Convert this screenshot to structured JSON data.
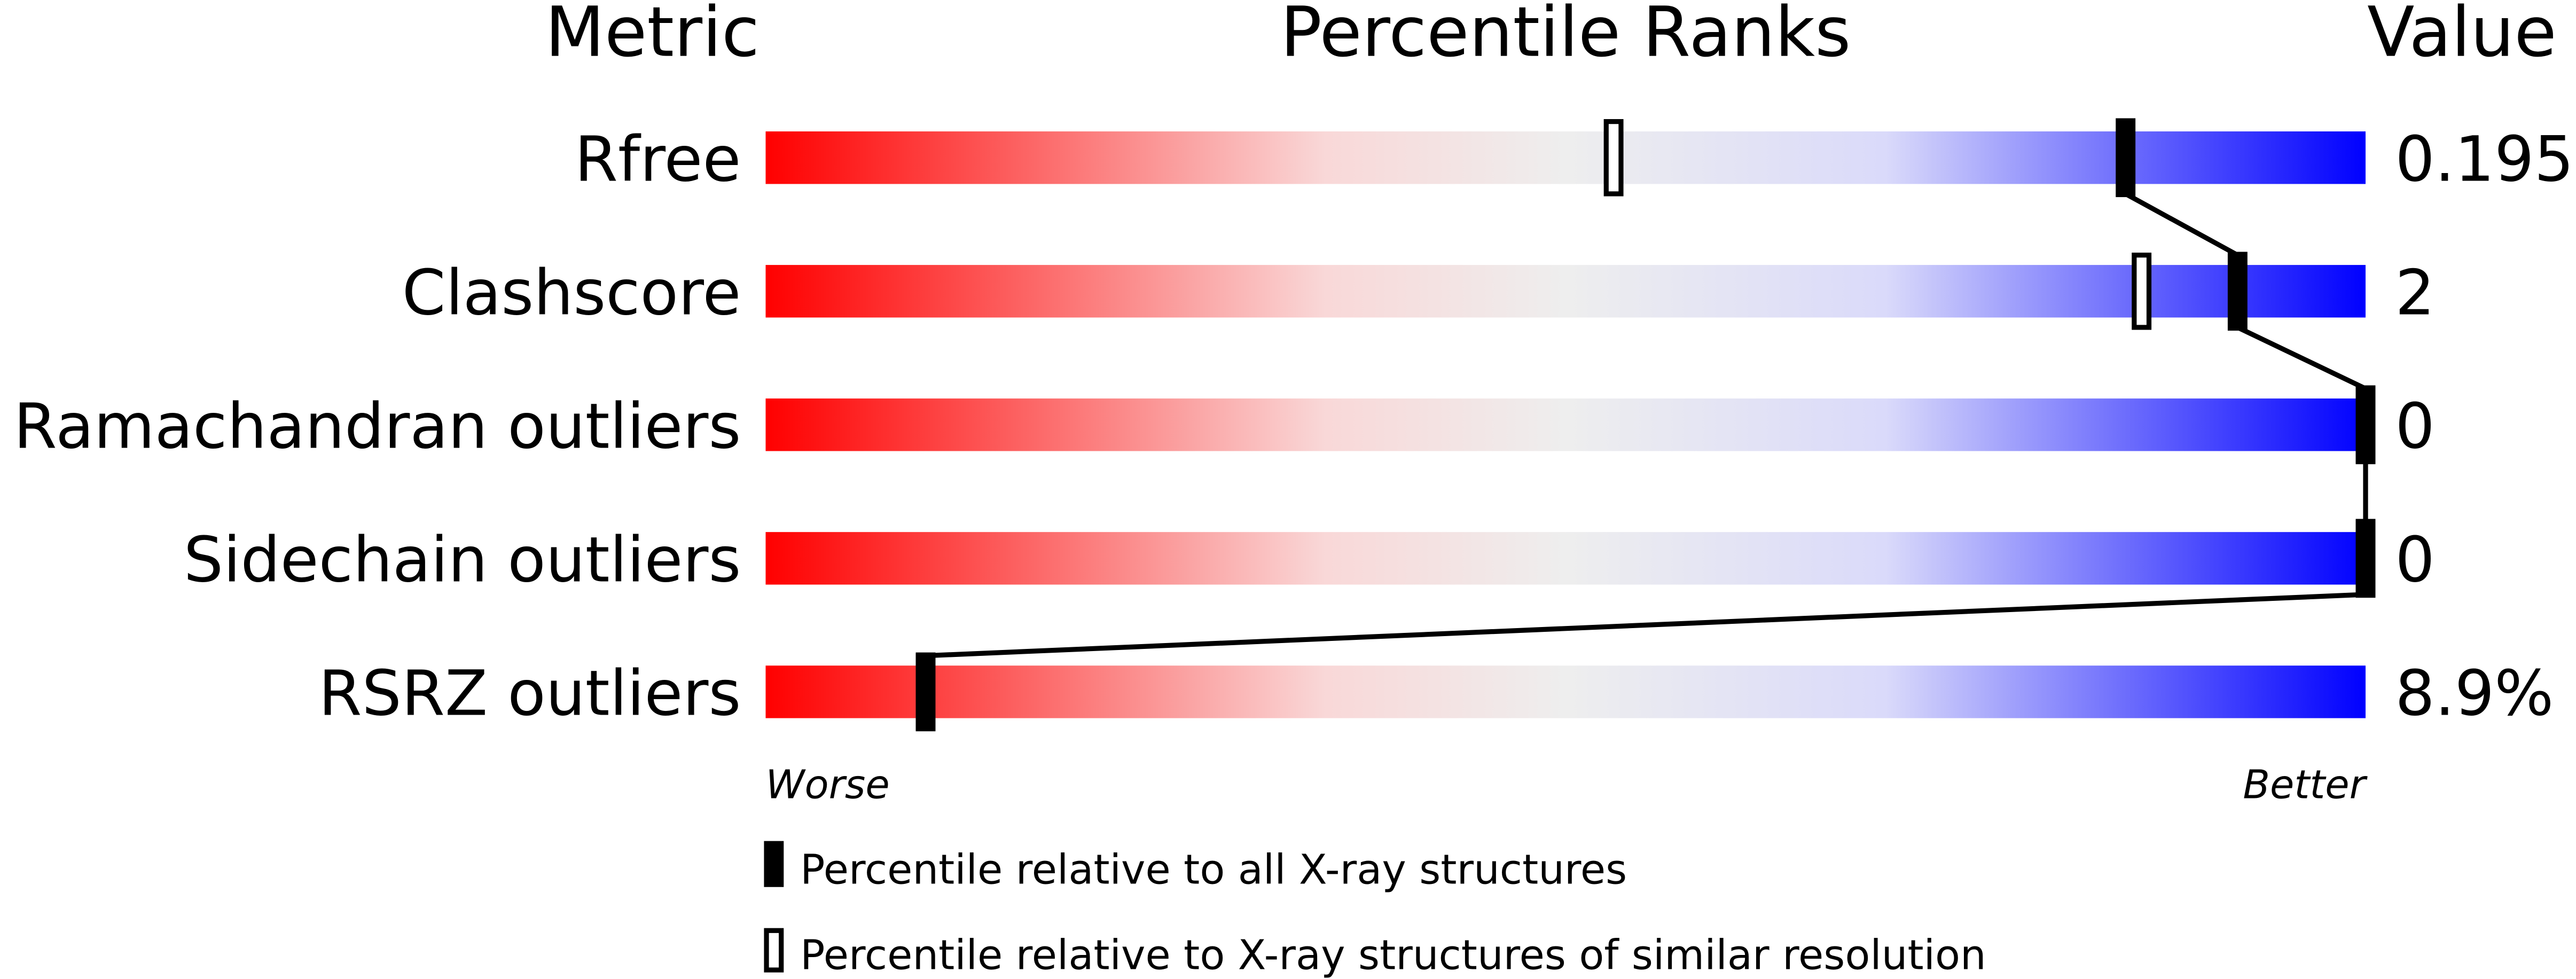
{
  "chart_data": {
    "type": "percentile",
    "headers": {
      "metric": "Metric",
      "percentile": "Percentile Ranks",
      "value": "Value"
    },
    "categories": [
      "Rfree",
      "Clashscore",
      "Ramachandran outliers",
      "Sidechain outliers",
      "RSRZ outliers"
    ],
    "values_printed": [
      "0.195",
      "2",
      "0",
      "0",
      "8.9%"
    ],
    "series": [
      {
        "name": "Percentile relative to all X-ray structures",
        "color": "#000000",
        "values": [
          85,
          92,
          100,
          100,
          10
        ]
      },
      {
        "name": "Percentile relative to X-ray structures of similar resolution",
        "color": "#000000",
        "values": [
          53,
          86,
          100,
          100,
          10
        ]
      }
    ],
    "xlim": [
      0,
      100
    ],
    "x_low_label": "Worse",
    "x_high_label": "Better"
  }
}
